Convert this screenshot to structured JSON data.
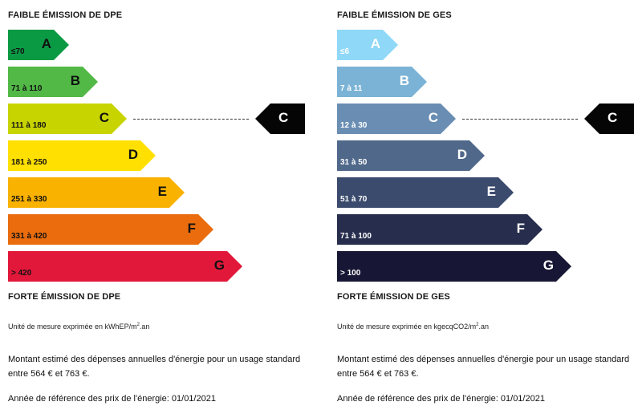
{
  "dpe": {
    "header_top": "FAIBLE ÉMISSION DE DPE",
    "header_bottom": "FORTE ÉMISSION DE DPE",
    "rating": "C",
    "bars": [
      {
        "range": "≤70",
        "letter": "A",
        "color": "#0b9a44",
        "text_color": "#111111"
      },
      {
        "range": "71 à 110",
        "letter": "B",
        "color": "#52b947",
        "text_color": "#111111"
      },
      {
        "range": "111 à 180",
        "letter": "C",
        "color": "#c8d400",
        "text_color": "#111111"
      },
      {
        "range": "181 à 250",
        "letter": "D",
        "color": "#ffe000",
        "text_color": "#111111"
      },
      {
        "range": "251 à 330",
        "letter": "E",
        "color": "#f9b200",
        "text_color": "#111111"
      },
      {
        "range": "331 à 420",
        "letter": "F",
        "color": "#ea6c0d",
        "text_color": "#111111"
      },
      {
        "range": "> 420",
        "letter": "G",
        "color": "#e1183a",
        "text_color": "#111111"
      }
    ],
    "unit_prefix": "Unité de mesure exprimée en kWhEP/m",
    "unit_sup": "2",
    "unit_suffix": ".an",
    "estimate": "Montant estimé des dépenses annuelles d'énergie pour un usage standard entre 564 € et 763 €.",
    "reference_year": "Année de référence des prix de l'énergie: 01/01/2021"
  },
  "ges": {
    "header_top": "FAIBLE ÉMISSION DE GES",
    "header_bottom": "FORTE ÉMISSION DE GES",
    "rating": "C",
    "bars": [
      {
        "range": "≤6",
        "letter": "A",
        "color": "#8fd8f8",
        "text_color": "#ffffff"
      },
      {
        "range": "7 à 11",
        "letter": "B",
        "color": "#7bb3d6",
        "text_color": "#ffffff"
      },
      {
        "range": "12 à 30",
        "letter": "C",
        "color": "#6a8eb3",
        "text_color": "#ffffff"
      },
      {
        "range": "31 à 50",
        "letter": "D",
        "color": "#50688a",
        "text_color": "#ffffff"
      },
      {
        "range": "51 à 70",
        "letter": "E",
        "color": "#3b4b6d",
        "text_color": "#ffffff"
      },
      {
        "range": "71 à 100",
        "letter": "F",
        "color": "#272d4d",
        "text_color": "#ffffff"
      },
      {
        "range": "> 100",
        "letter": "G",
        "color": "#171634",
        "text_color": "#ffffff"
      }
    ],
    "unit_prefix": "Unité de mesure exprimée en kgecqCO2/m",
    "unit_sup": "2",
    "unit_suffix": ".an",
    "estimate": "Montant estimé des dépenses annuelles d'énergie pour un usage standard entre 564 € et 763 €.",
    "reference_year": "Année de référence des prix de l'énergie: 01/01/2021"
  }
}
